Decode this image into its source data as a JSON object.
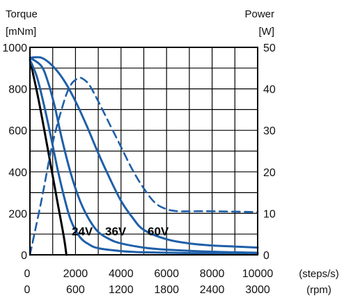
{
  "chart_data": {
    "type": "line",
    "title": "",
    "y_left_title": "Torque",
    "y_left_unit": "[mNm]",
    "y_right_title": "Power",
    "y_right_unit": "[W]",
    "x_unit_primary": "(steps/s)",
    "x_unit_secondary": "(rpm)",
    "xlim": [
      0,
      10000
    ],
    "ylim_left": [
      0,
      1000
    ],
    "ylim_right": [
      0,
      50
    ],
    "x_ticks_steps": [
      "0",
      "2000",
      "4000",
      "6000",
      "8000",
      "10000"
    ],
    "x_ticks_rpm": [
      "0",
      "600",
      "1200",
      "1800",
      "2400",
      "3000"
    ],
    "y_ticks_left": [
      "0",
      "200",
      "400",
      "600",
      "800",
      "1000"
    ],
    "y_ticks_right": [
      "0",
      "10",
      "20",
      "30",
      "40",
      "50"
    ],
    "grid": true,
    "voltage_labels": [
      "24V",
      "36V",
      "60V"
    ],
    "series": [
      {
        "axis": "left",
        "color": "#000000",
        "dash": false,
        "x": [
          0,
          300,
          600,
          900,
          1200,
          1500,
          1600
        ],
        "y": [
          940,
          790,
          620,
          440,
          260,
          80,
          0
        ]
      },
      {
        "axis": "left",
        "color": "#1f5fa8",
        "dash": false,
        "x": [
          0,
          300,
          600,
          900,
          1200,
          1500,
          1800,
          2200,
          2600,
          3000,
          4000,
          5000,
          7000,
          10000
        ],
        "y": [
          940,
          860,
          730,
          580,
          420,
          280,
          165,
          85,
          50,
          32,
          18,
          12,
          8,
          5
        ]
      },
      {
        "axis": "left",
        "color": "#1f5fa8",
        "dash": false,
        "x": [
          0,
          500,
          800,
          1100,
          1400,
          1800,
          2200,
          2600,
          3000,
          3500,
          4000,
          5000,
          6000,
          8000,
          10000
        ],
        "y": [
          950,
          910,
          830,
          710,
          560,
          390,
          260,
          170,
          110,
          75,
          55,
          35,
          25,
          15,
          10
        ]
      },
      {
        "axis": "left",
        "color": "#1f5fa8",
        "dash": false,
        "x": [
          0,
          500,
          1000,
          1500,
          2000,
          2500,
          3000,
          3500,
          4000,
          4500,
          5000,
          6000,
          7000,
          8000,
          9000,
          10000
        ],
        "y": [
          950,
          950,
          910,
          840,
          740,
          620,
          490,
          370,
          260,
          180,
          120,
          75,
          55,
          45,
          40,
          35
        ]
      },
      {
        "axis": "right",
        "color": "#1f5fa8",
        "dash": true,
        "x": [
          0,
          500,
          1000,
          1500,
          1800,
          2100,
          2300,
          2600,
          3000,
          3500,
          4000,
          4500,
          5000,
          5500,
          6000,
          6500,
          7000,
          8000,
          10000
        ],
        "y": [
          0,
          13,
          27,
          37,
          41,
          42.5,
          42.5,
          41,
          37,
          31.5,
          26,
          20.5,
          16,
          12.5,
          11,
          10.5,
          10.5,
          10.5,
          10.3
        ]
      }
    ]
  }
}
